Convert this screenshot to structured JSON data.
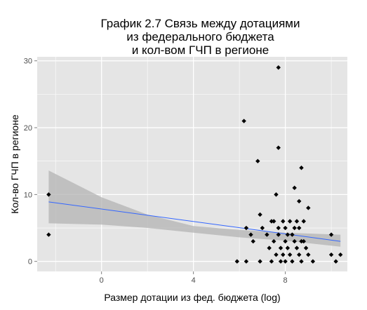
{
  "chart_data": {
    "type": "scatter",
    "title_lines": [
      "График 2.7 Связь между дотациями",
      "из федерального бюджета",
      "и кол-вом ГЧП в регионе"
    ],
    "xlabel": "Размер дотации из фед. бюджета (log)",
    "ylabel": "Кол-во ГЧП в регионе",
    "xlim": [
      -2.8,
      10.7
    ],
    "ylim": [
      -1.5,
      30.6
    ],
    "xticks": [
      0,
      4,
      8
    ],
    "yticks": [
      0,
      10,
      20,
      30
    ],
    "grid": true,
    "colors": {
      "panel": "#e5e5e5",
      "grid": "#ffffff",
      "points": "#000000",
      "ribbon": "#b3b3b3",
      "line": "#3366ff"
    },
    "points": [
      {
        "x": -2.3,
        "y": 10
      },
      {
        "x": -2.3,
        "y": 4
      },
      {
        "x": 5.9,
        "y": 0
      },
      {
        "x": 6.2,
        "y": 21
      },
      {
        "x": 6.3,
        "y": 5
      },
      {
        "x": 6.3,
        "y": 0
      },
      {
        "x": 6.5,
        "y": 4
      },
      {
        "x": 6.6,
        "y": 3
      },
      {
        "x": 6.8,
        "y": 15
      },
      {
        "x": 6.9,
        "y": 7
      },
      {
        "x": 6.9,
        "y": 0
      },
      {
        "x": 7.0,
        "y": 5
      },
      {
        "x": 7.2,
        "y": 4
      },
      {
        "x": 7.3,
        "y": 2
      },
      {
        "x": 7.4,
        "y": 6
      },
      {
        "x": 7.4,
        "y": 0
      },
      {
        "x": 7.5,
        "y": 6
      },
      {
        "x": 7.5,
        "y": 3
      },
      {
        "x": 7.6,
        "y": 1
      },
      {
        "x": 7.7,
        "y": 29
      },
      {
        "x": 7.7,
        "y": 17
      },
      {
        "x": 7.6,
        "y": 10
      },
      {
        "x": 7.7,
        "y": 5
      },
      {
        "x": 7.7,
        "y": 4
      },
      {
        "x": 7.8,
        "y": 2
      },
      {
        "x": 7.8,
        "y": 0
      },
      {
        "x": 7.9,
        "y": 6
      },
      {
        "x": 7.9,
        "y": 1
      },
      {
        "x": 8.0,
        "y": 5
      },
      {
        "x": 8.0,
        "y": 3
      },
      {
        "x": 8.0,
        "y": 0
      },
      {
        "x": 8.1,
        "y": 4
      },
      {
        "x": 8.1,
        "y": 2
      },
      {
        "x": 8.2,
        "y": 6
      },
      {
        "x": 8.2,
        "y": 1
      },
      {
        "x": 8.3,
        "y": 4
      },
      {
        "x": 8.3,
        "y": 0
      },
      {
        "x": 8.4,
        "y": 11
      },
      {
        "x": 8.4,
        "y": 5
      },
      {
        "x": 8.4,
        "y": 3
      },
      {
        "x": 8.5,
        "y": 6
      },
      {
        "x": 8.5,
        "y": 2
      },
      {
        "x": 8.6,
        "y": 9
      },
      {
        "x": 8.6,
        "y": 5
      },
      {
        "x": 8.6,
        "y": 1
      },
      {
        "x": 8.7,
        "y": 14
      },
      {
        "x": 8.7,
        "y": 3
      },
      {
        "x": 8.7,
        "y": 0
      },
      {
        "x": 8.8,
        "y": 6
      },
      {
        "x": 8.8,
        "y": 3
      },
      {
        "x": 8.9,
        "y": 2
      },
      {
        "x": 9.0,
        "y": 8
      },
      {
        "x": 9.0,
        "y": 1
      },
      {
        "x": 9.2,
        "y": 0
      },
      {
        "x": 10.0,
        "y": 4
      },
      {
        "x": 10.0,
        "y": 1
      },
      {
        "x": 10.2,
        "y": 0
      },
      {
        "x": 10.4,
        "y": 1
      }
    ],
    "fit_line": {
      "x": [
        -2.3,
        10.4
      ],
      "y": [
        8.9,
        3.0
      ]
    },
    "confidence_band": [
      {
        "x": -2.3,
        "lower": 5.7,
        "upper": 13.6
      },
      {
        "x": 0,
        "lower": 5.5,
        "upper": 9.6
      },
      {
        "x": 2,
        "lower": 5.0,
        "upper": 7.0
      },
      {
        "x": 4,
        "lower": 4.3,
        "upper": 5.3
      },
      {
        "x": 6,
        "lower": 3.6,
        "upper": 4.7
      },
      {
        "x": 8,
        "lower": 3.1,
        "upper": 4.3
      },
      {
        "x": 10.4,
        "lower": 2.2,
        "upper": 4.0
      }
    ]
  }
}
